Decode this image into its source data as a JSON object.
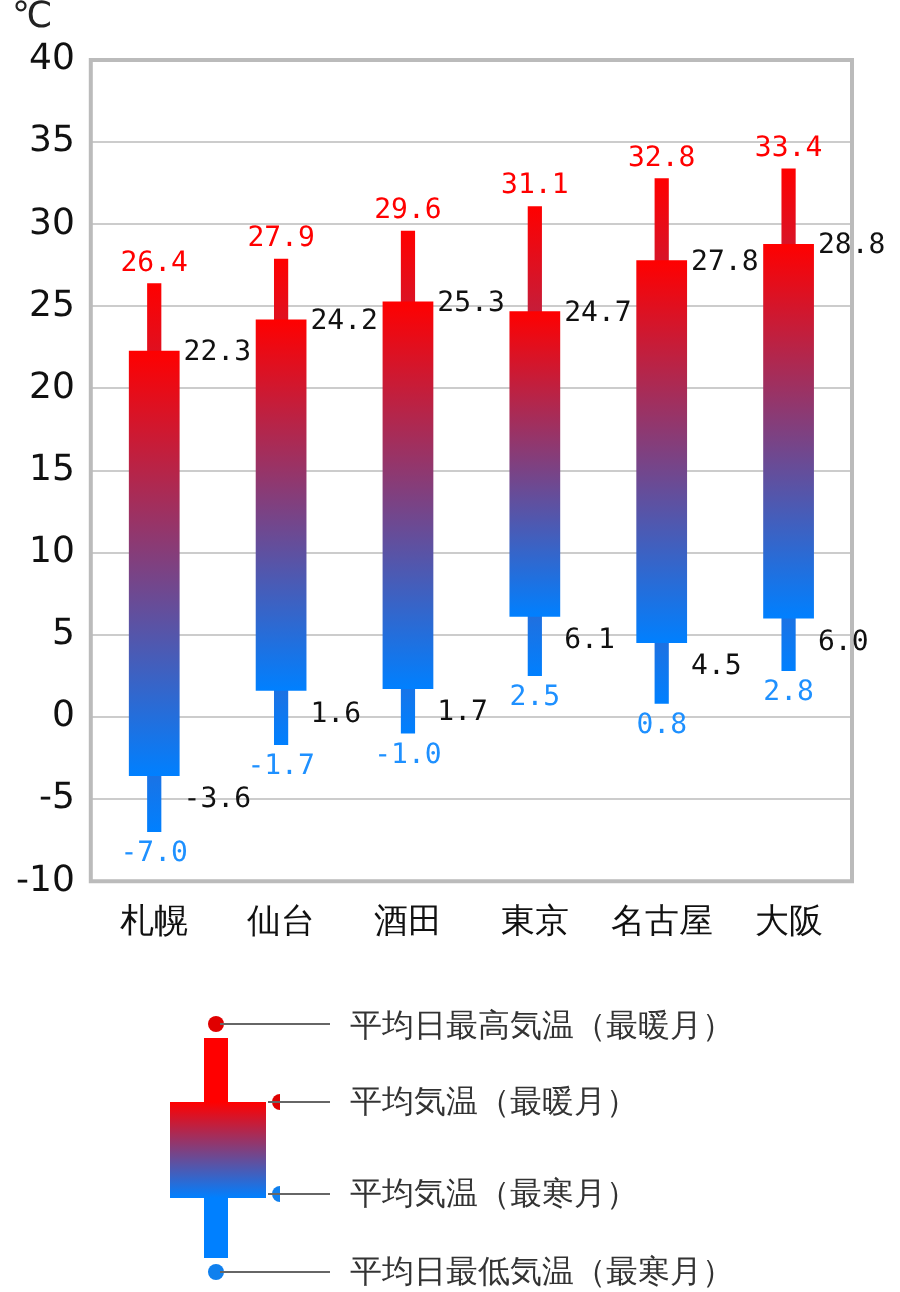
{
  "chart_data": {
    "type": "candlestick",
    "ylabel": "℃",
    "categories": [
      "札幌",
      "仙台",
      "酒田",
      "東京",
      "名古屋",
      "大阪"
    ],
    "ohlc": [
      [
        -3.6,
        26.4,
        -7.0,
        22.3
      ],
      [
        1.6,
        27.9,
        -1.7,
        24.2
      ],
      [
        1.7,
        29.6,
        -1.0,
        25.3
      ],
      [
        6.1,
        31.1,
        2.5,
        24.7
      ],
      [
        4.5,
        32.8,
        0.8,
        27.8
      ],
      [
        6.0,
        33.4,
        2.8,
        28.8
      ]
    ],
    "ylim": [
      -10,
      40
    ],
    "yticks": [
      -10,
      -5,
      0,
      5,
      10,
      15,
      20,
      25,
      30,
      35,
      40
    ],
    "grid": "y",
    "legend": false,
    "annotations": [
      "平均日最高気温（最暖月）",
      "平均気温（最暖月）",
      "平均気温（最寒月）",
      "平均日最低気温（最寒月）",
      {
        "text": "26.4",
        "x": "札幌",
        "y": 26.4
      },
      {
        "text": "22.3",
        "x": "札幌",
        "y": 22.3
      },
      {
        "text": "-3.6",
        "x": "札幌",
        "y": -3.6
      },
      {
        "text": "-7.0",
        "x": "札幌",
        "y": -7.0
      },
      {
        "text": "27.9",
        "x": "仙台",
        "y": 27.9
      },
      {
        "text": "24.2",
        "x": "仙台",
        "y": 24.2
      },
      {
        "text": "1.6",
        "x": "仙台",
        "y": 1.6
      },
      {
        "text": "-1.7",
        "x": "仙台",
        "y": -1.7
      },
      {
        "text": "29.6",
        "x": "酒田",
        "y": 29.6
      },
      {
        "text": "25.3",
        "x": "酒田",
        "y": 25.3
      },
      {
        "text": "1.7",
        "x": "酒田",
        "y": 1.7
      },
      {
        "text": "-1.0",
        "x": "酒田",
        "y": -1.0
      },
      {
        "text": "31.1",
        "x": "東京",
        "y": 31.1
      },
      {
        "text": "24.7",
        "x": "東京",
        "y": 24.7
      },
      {
        "text": "6.1",
        "x": "東京",
        "y": 6.1
      },
      {
        "text": "2.5",
        "x": "東京",
        "y": 2.5
      },
      {
        "text": "32.8",
        "x": "名古屋",
        "y": 32.8
      },
      {
        "text": "27.8",
        "x": "名古屋",
        "y": 27.8
      },
      {
        "text": "4.5",
        "x": "名古屋",
        "y": 4.5
      },
      {
        "text": "0.8",
        "x": "名古屋",
        "y": 0.8
      },
      {
        "text": "33.4",
        "x": "大阪",
        "y": 33.4
      },
      {
        "text": "28.8",
        "x": "大阪",
        "y": 28.8
      },
      {
        "text": "6.0",
        "x": "大阪",
        "y": 6.0
      },
      {
        "text": "2.8",
        "x": "大阪",
        "y": 2.8
      }
    ]
  }
}
